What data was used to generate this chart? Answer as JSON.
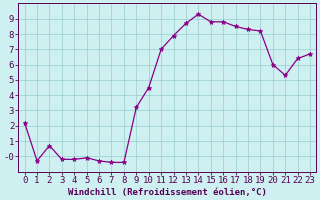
{
  "x": [
    0,
    1,
    2,
    3,
    4,
    5,
    6,
    7,
    8,
    9,
    10,
    11,
    12,
    13,
    14,
    15,
    16,
    17,
    18,
    19,
    20,
    21,
    22,
    23
  ],
  "y": [
    2.2,
    -0.3,
    0.7,
    -0.2,
    -0.2,
    -0.1,
    -0.3,
    -0.4,
    -0.4,
    3.2,
    4.5,
    7.0,
    7.9,
    8.7,
    9.3,
    8.8,
    8.8,
    8.5,
    8.3,
    8.2,
    6.0,
    5.3,
    6.4,
    6.7
  ],
  "line_color": "#880088",
  "marker": "*",
  "marker_size": 3.5,
  "bg_color": "#cff0f0",
  "grid_color": "#99cccc",
  "xlabel": "Windchill (Refroidissement éolien,°C)",
  "xlim": [
    -0.5,
    23.5
  ],
  "ylim": [
    -1.0,
    10.0
  ],
  "ytick_vals": [
    0,
    1,
    2,
    3,
    4,
    5,
    6,
    7,
    8,
    9
  ],
  "ytick_labels": [
    "-0",
    "1",
    "2",
    "3",
    "4",
    "5",
    "6",
    "7",
    "8",
    "9"
  ],
  "xticks": [
    0,
    1,
    2,
    3,
    4,
    5,
    6,
    7,
    8,
    9,
    10,
    11,
    12,
    13,
    14,
    15,
    16,
    17,
    18,
    19,
    20,
    21,
    22,
    23
  ],
  "xlabel_fontsize": 6.5,
  "tick_fontsize": 6.5,
  "text_color": "#550055",
  "spine_color": "#550055",
  "linewidth": 0.9
}
